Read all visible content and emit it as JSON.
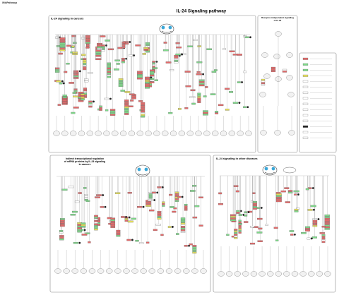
{
  "header": {
    "logo_line1": "WikiPathways",
    "logo_line2": "",
    "title": "IL-24 Signaling pathway"
  },
  "panels": [
    {
      "id": "cancer",
      "title_lines": [
        "IL-24 signaling in cancers"
      ]
    },
    {
      "id": "receptor",
      "title_lines": [
        "Receptor-independent signaling",
        "of IL-24"
      ]
    },
    {
      "id": "mirna",
      "title_lines": [
        "Indirect transcriptional regulation",
        "of mRNA proteins by IL-24 signaling",
        "in cancers"
      ]
    },
    {
      "id": "other",
      "title_lines": [
        "IL-24 signaling in other diseases"
      ]
    }
  ],
  "legend": {
    "title": ""
  },
  "colors": {
    "upregulated": "#e26b6b",
    "downregulated": "#7fd98a",
    "yellow": "#e6e05a",
    "border": "#777777",
    "cell": "#f2f2f2"
  }
}
